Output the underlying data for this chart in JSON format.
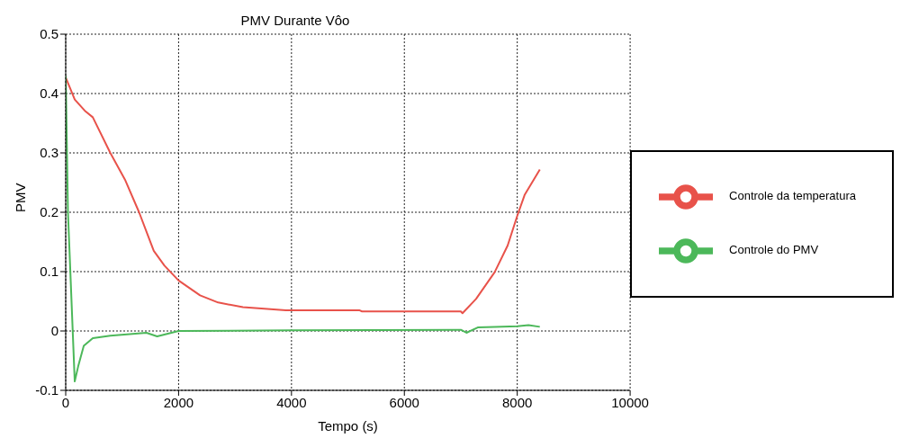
{
  "chart_data": {
    "type": "line",
    "title": "PMV Durante Vôo",
    "xlabel": "Tempo (s)",
    "ylabel": "PMV",
    "xlim": [
      0,
      10000
    ],
    "xticks": [
      0,
      2000,
      4000,
      6000,
      8000,
      10000
    ],
    "ylim": [
      -0.1,
      0.5
    ],
    "yticks": [
      -0.1,
      0,
      0.1,
      0.2,
      0.3,
      0.4,
      0.5
    ],
    "grid": true,
    "legend": "right",
    "marker": "none",
    "line_style": "solid",
    "series": [
      {
        "name": "Controle da temperatura",
        "color": "#e8524a",
        "x": [
          0,
          160,
          350,
          480,
          790,
          1050,
          1300,
          1560,
          1750,
          2000,
          2380,
          2700,
          3140,
          3900,
          5200,
          5250,
          7000,
          7030,
          7270,
          7600,
          7830,
          8000,
          8130,
          8400
        ],
        "values": [
          0.427,
          0.39,
          0.37,
          0.36,
          0.3,
          0.255,
          0.2,
          0.135,
          0.11,
          0.085,
          0.06,
          0.048,
          0.04,
          0.035,
          0.035,
          0.033,
          0.033,
          0.03,
          0.054,
          0.099,
          0.144,
          0.194,
          0.229,
          0.272
        ]
      },
      {
        "name": "Controle do PMV",
        "color": "#4cb85a",
        "x": [
          0,
          40,
          160,
          220,
          320,
          480,
          790,
          1430,
          1620,
          2000,
          4000,
          7000,
          7100,
          7300,
          7600,
          8000,
          8200,
          8400
        ],
        "values": [
          0.43,
          0.2,
          -0.085,
          -0.06,
          -0.025,
          -0.012,
          -0.008,
          -0.003,
          -0.009,
          0,
          0.001,
          0.002,
          -0.003,
          0.006,
          0.007,
          0.008,
          0.01,
          0.007
        ]
      }
    ]
  }
}
